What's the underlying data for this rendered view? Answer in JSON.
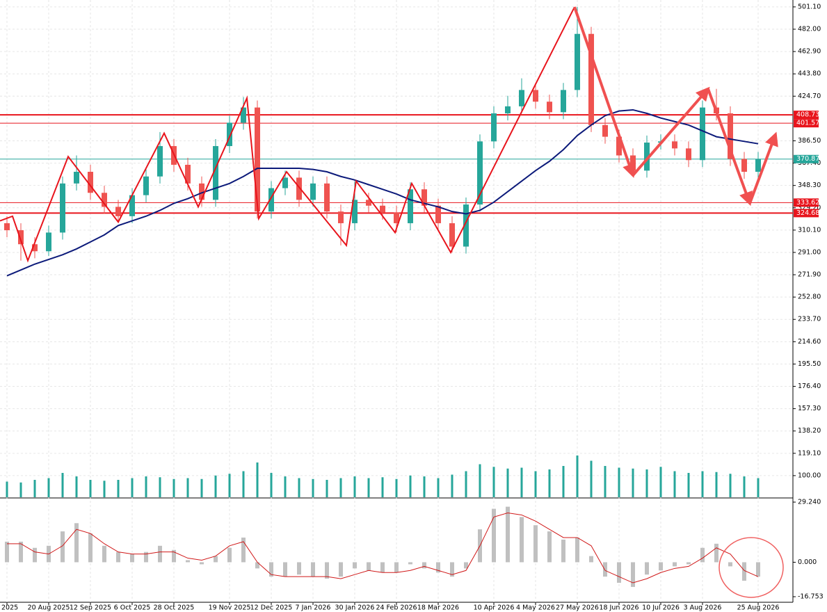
{
  "chart_data": {
    "type": "candlestick",
    "categories": [
      "2025",
      null,
      null,
      "20 Aug 2025",
      null,
      null,
      "12 Sep 2025",
      null,
      null,
      "6 Oct 2025",
      null,
      null,
      "28 Oct 2025",
      null,
      null,
      null,
      "19 Nov 2025",
      null,
      null,
      "12 Dec 2025",
      null,
      null,
      "7 Jan 2026",
      null,
      null,
      "30 Jan 2026",
      null,
      null,
      "24 Feb 2026",
      null,
      null,
      "18 Mar 2026",
      null,
      null,
      null,
      "10 Apr 2026",
      null,
      null,
      "4 May 2026",
      null,
      null,
      "27 May 2026",
      null,
      null,
      "18 Jun 2026",
      null,
      null,
      "10 Jul 2026",
      null,
      null,
      "3 Aug 2026",
      null,
      null,
      null,
      "25 Aug 2026"
    ],
    "open": [
      316,
      310,
      298,
      292,
      308,
      350,
      360,
      342,
      330,
      322,
      340,
      356,
      382,
      366,
      350,
      336,
      382,
      402,
      415,
      326,
      346,
      355,
      336,
      350,
      326,
      316,
      336,
      331,
      325,
      316,
      345,
      331,
      316,
      296,
      332,
      386,
      410,
      416,
      430,
      420,
      411,
      430,
      478,
      400,
      390,
      374,
      361,
      385,
      386,
      380,
      370,
      415,
      410,
      371,
      360
    ],
    "high": [
      322,
      316,
      304,
      314,
      356,
      374,
      366,
      348,
      336,
      346,
      362,
      394,
      388,
      372,
      356,
      388,
      408,
      424,
      421,
      352,
      361,
      361,
      356,
      356,
      332,
      352,
      342,
      337,
      331,
      351,
      351,
      337,
      322,
      338,
      392,
      416,
      425,
      440,
      436,
      426,
      436,
      501,
      484,
      406,
      396,
      380,
      391,
      392,
      392,
      386,
      421,
      431,
      416,
      377,
      377
    ],
    "low": [
      304,
      284,
      286,
      288,
      302,
      344,
      336,
      324,
      317,
      316,
      334,
      350,
      360,
      344,
      330,
      330,
      376,
      396,
      320,
      320,
      340,
      330,
      330,
      320,
      297,
      310,
      325,
      319,
      308,
      310,
      325,
      310,
      291,
      290,
      326,
      380,
      404,
      410,
      414,
      405,
      405,
      424,
      394,
      384,
      368,
      357,
      355,
      379,
      374,
      364,
      364,
      404,
      365,
      354,
      354
    ],
    "close": [
      310,
      298,
      292,
      308,
      350,
      360,
      342,
      330,
      322,
      340,
      356,
      382,
      366,
      350,
      336,
      382,
      402,
      415,
      326,
      346,
      355,
      336,
      350,
      326,
      316,
      336,
      331,
      325,
      316,
      345,
      331,
      316,
      296,
      332,
      386,
      410,
      416,
      430,
      420,
      411,
      430,
      478,
      400,
      390,
      374,
      361,
      385,
      386,
      380,
      370,
      415,
      410,
      371,
      360,
      371
    ],
    "up_color": "#26a69a",
    "down_color": "#ef5350",
    "ma": {
      "color": "#0c1a7a",
      "values": [
        271,
        276,
        281,
        285,
        289,
        294,
        300,
        306,
        314,
        318,
        322,
        327,
        333,
        337,
        342,
        346,
        350,
        356,
        363,
        363,
        363,
        363,
        362,
        360,
        356,
        353,
        349,
        345,
        341,
        336,
        333,
        330,
        326,
        324,
        327,
        334,
        343,
        352,
        361,
        369,
        379,
        391,
        400,
        408,
        412,
        413,
        410,
        406,
        403,
        400,
        395,
        390,
        388,
        386,
        384
      ]
    },
    "volume": {
      "color": "#26a69a",
      "values": [
        18,
        17,
        20,
        22,
        28,
        24,
        20,
        19,
        20,
        22,
        24,
        23,
        21,
        22,
        21,
        25,
        27,
        30,
        40,
        28,
        24,
        22,
        21,
        20,
        22,
        24,
        22,
        23,
        21,
        25,
        24,
        22,
        26,
        30,
        38,
        35,
        33,
        34,
        30,
        32,
        36,
        48,
        42,
        36,
        34,
        33,
        32,
        35,
        30,
        28,
        30,
        29,
        27,
        24,
        22
      ]
    },
    "ylim": [
      81.5,
      507
    ],
    "yticks": [
      {
        "value": 501.1,
        "label": "501.10"
      },
      {
        "value": 482,
        "label": "482.00"
      },
      {
        "value": 462.9,
        "label": "462.90"
      },
      {
        "value": 443.8,
        "label": "443.80"
      },
      {
        "value": 424.7,
        "label": "424.70"
      },
      {
        "value": 386.5,
        "label": "386.50"
      },
      {
        "value": 367.4,
        "label": "367.40"
      },
      {
        "value": 348.3,
        "label": "348.30"
      },
      {
        "value": 329.2,
        "label": "329.20"
      },
      {
        "value": 310.1,
        "label": "310.10"
      },
      {
        "value": 291,
        "label": "291.00"
      },
      {
        "value": 271.9,
        "label": "271.90"
      },
      {
        "value": 252.8,
        "label": "252.80"
      },
      {
        "value": 233.7,
        "label": "233.70"
      },
      {
        "value": 214.6,
        "label": "214.60"
      },
      {
        "value": 195.5,
        "label": "195.50"
      },
      {
        "value": 176.4,
        "label": "176.40"
      },
      {
        "value": 157.3,
        "label": "157.30"
      },
      {
        "value": 138.2,
        "label": "138.20"
      },
      {
        "value": 119.1,
        "label": "119.10"
      },
      {
        "value": 100,
        "label": "100.00"
      }
    ],
    "grid": true,
    "levels": [
      {
        "value": 408.73,
        "color": "#e8141c",
        "width": 2
      },
      {
        "value": 401.57,
        "color": "#e8141c",
        "width": 1
      },
      {
        "value": 370.87,
        "color": "#26a69a",
        "width": 1
      },
      {
        "value": 333.62,
        "color": "#e8141c",
        "width": 1
      },
      {
        "value": 324.68,
        "color": "#e8141c",
        "width": 2
      }
    ],
    "zigzag": {
      "color": "#e8141c",
      "x": [
        -0.5,
        0.4,
        1.5,
        4.4,
        8,
        11.3,
        13.75,
        17.25,
        18.1,
        20.1,
        24.4,
        25.1,
        27.9,
        29.1,
        31.9,
        40.8
      ],
      "y": [
        318,
        322,
        284,
        373,
        317,
        393,
        330,
        423,
        320,
        360,
        297,
        352,
        308,
        350,
        291,
        501
      ]
    },
    "arrows": {
      "color": "#f05050",
      "x": [
        40.8,
        45,
        50.4,
        53.4,
        55.25
      ],
      "y": [
        501,
        357,
        431,
        333,
        392
      ]
    },
    "macd": {
      "ylim": [
        -19.46,
        30.59
      ],
      "yticks": [
        {
          "value": 29.24,
          "label": "29.240"
        },
        {
          "value": 0,
          "label": "0.000"
        },
        {
          "value": -16.753,
          "label": "-16.753"
        }
      ],
      "histogram": {
        "color": "#c0c0c0",
        "values": [
          10,
          10,
          7,
          8,
          15,
          19,
          14,
          8,
          5,
          4,
          5,
          8,
          6,
          1,
          -1,
          3,
          7,
          12,
          -3,
          -7,
          -7,
          -6,
          -7,
          -8,
          -7,
          -3,
          -4,
          -5,
          -5,
          -1,
          -3,
          -5,
          -7,
          -3,
          16,
          26,
          27,
          22,
          18,
          15,
          11,
          12,
          3,
          -7,
          -10,
          -12,
          -6,
          -4,
          -2,
          -1,
          7,
          9,
          -2,
          -9,
          -7
        ]
      },
      "signal": {
        "color": "#d01818",
        "values": [
          9,
          9,
          5,
          4,
          8,
          16,
          14,
          9,
          5,
          4,
          4,
          5,
          5,
          2,
          1,
          3,
          8,
          10,
          0,
          -6,
          -7,
          -7,
          -7,
          -7,
          -8,
          -6,
          -4,
          -5,
          -5,
          -4,
          -2,
          -4,
          -6,
          -4,
          8,
          22,
          24,
          23,
          20,
          16,
          12,
          12,
          8,
          -4,
          -7,
          -10,
          -8,
          -5,
          -3,
          -2,
          2,
          7,
          4,
          -4,
          -7
        ]
      }
    }
  }
}
